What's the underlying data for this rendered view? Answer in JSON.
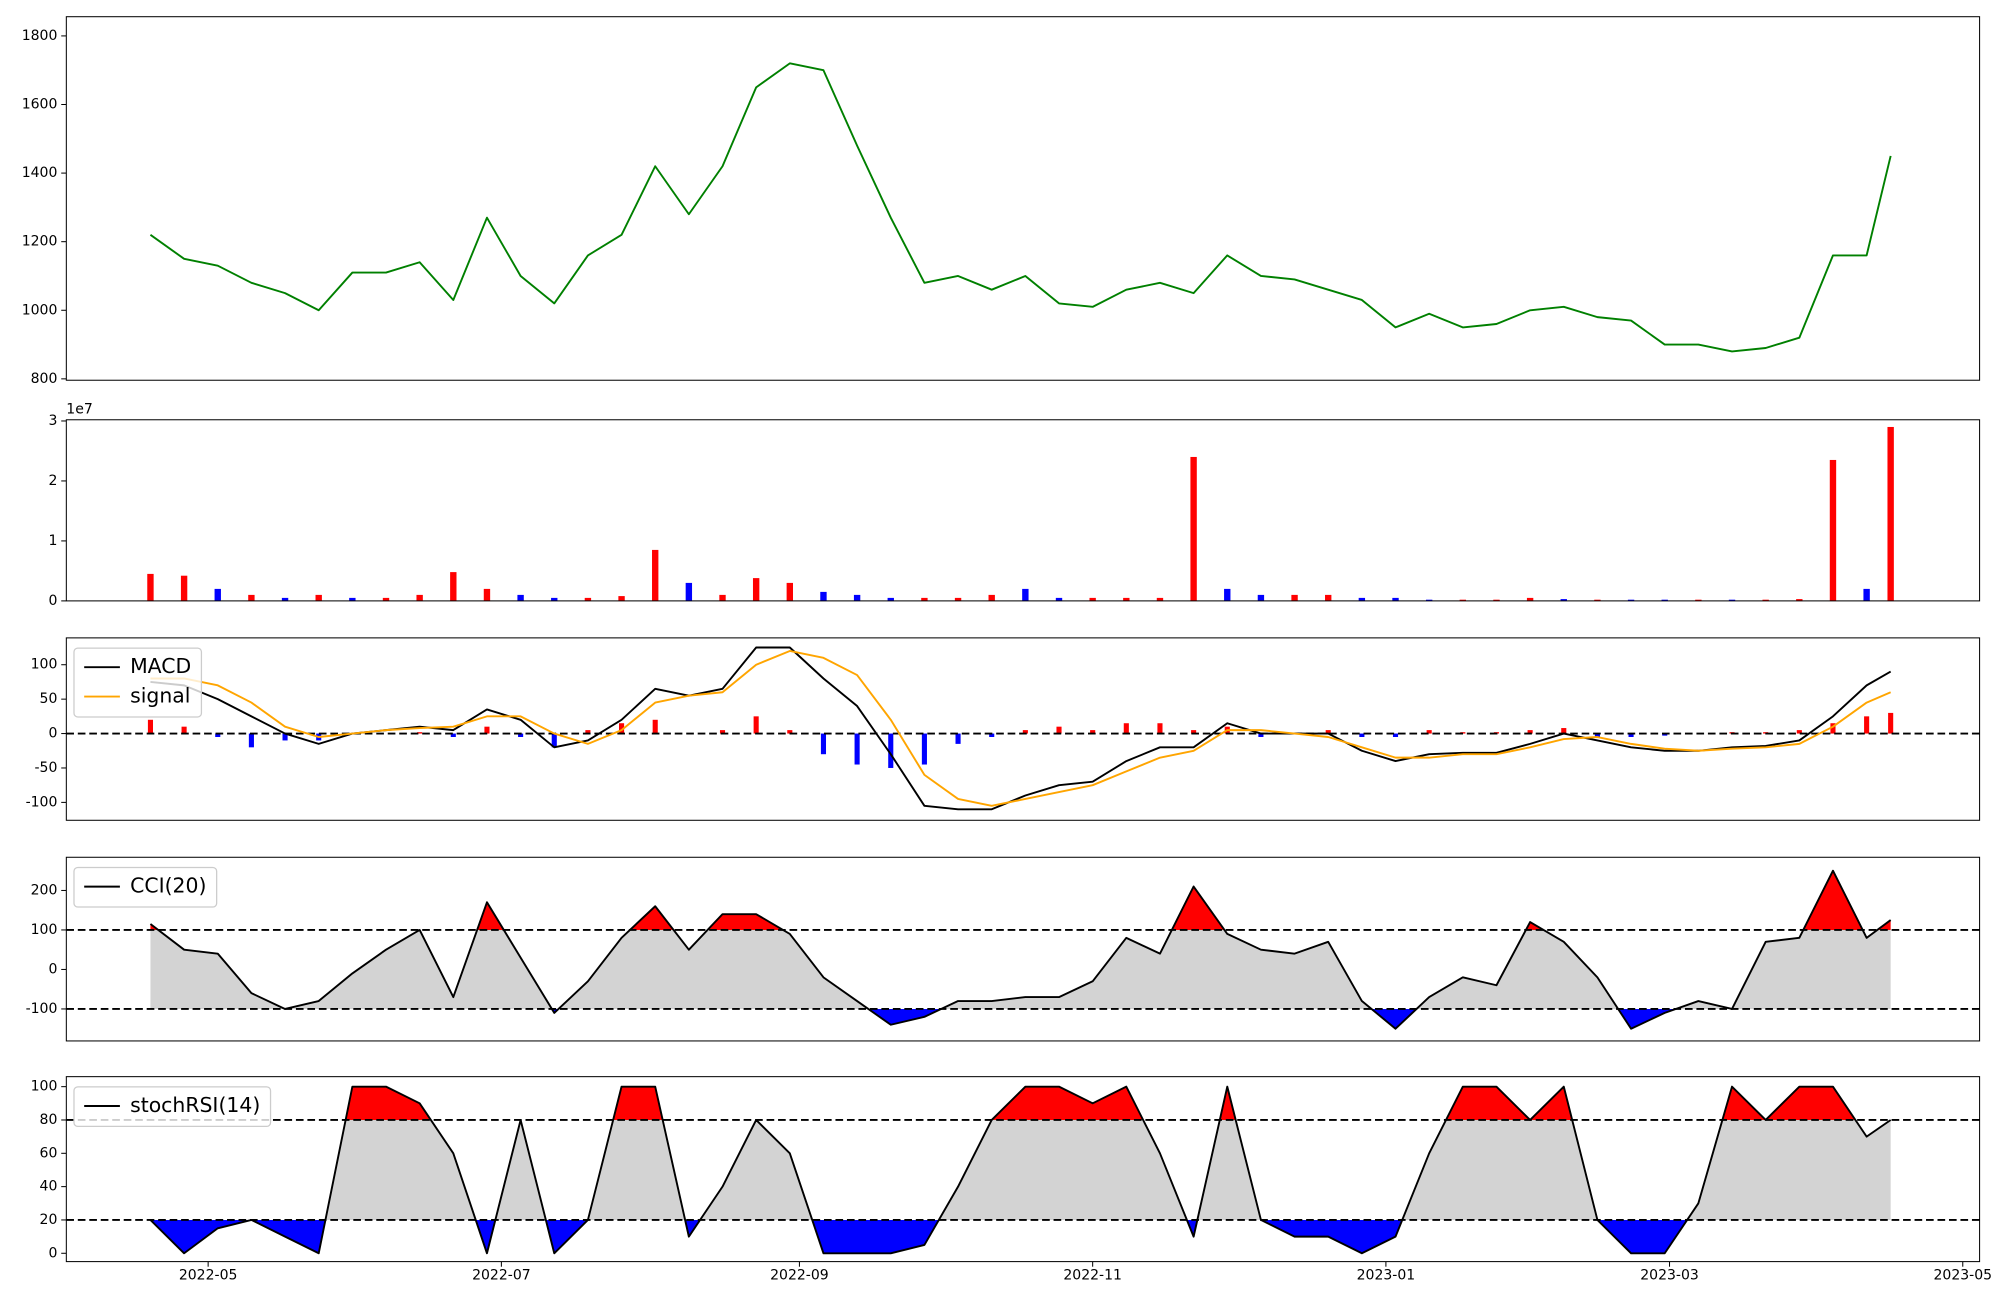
{
  "chart_data": [
    {
      "type": "line",
      "series": [
        {
          "color": "#008000",
          "values": [
            1220,
            1150,
            1130,
            1080,
            1050,
            1000,
            1110,
            1110,
            1140,
            1030,
            1270,
            1100,
            1020,
            1160,
            1220,
            1420,
            1280,
            1420,
            1650,
            1720,
            1700,
            1480,
            1270,
            1080,
            1100,
            1060,
            1100,
            1020,
            1010,
            1060,
            1080,
            1050,
            1160,
            1100,
            1090,
            1060,
            1030,
            950,
            990,
            950,
            960,
            1000,
            1010,
            980,
            970,
            900,
            900,
            880,
            890,
            920,
            1160,
            1160,
            1450
          ]
        }
      ],
      "ylim": [
        796,
        1856
      ],
      "yticks": [
        800,
        1000,
        1200,
        1400,
        1600,
        1800
      ]
    },
    {
      "type": "bar",
      "offset_label": "1e7",
      "values": [
        0.45,
        0.42,
        0.2,
        0.1,
        0.05,
        0.1,
        0.05,
        0.05,
        0.1,
        0.48,
        0.2,
        0.1,
        0.05,
        0.05,
        0.08,
        0.85,
        0.3,
        0.1,
        0.38,
        0.3,
        0.15,
        0.1,
        0.05,
        0.05,
        0.05,
        0.1,
        0.2,
        0.05,
        0.05,
        0.05,
        0.05,
        2.4,
        0.2,
        0.1,
        0.1,
        0.1,
        0.05,
        0.05,
        0.02,
        0.02,
        0.02,
        0.05,
        0.03,
        0.02,
        0.02,
        0.02,
        0.02,
        0.02,
        0.02,
        0.03,
        2.35,
        0.2,
        2.9
      ],
      "colors": [
        "red",
        "red",
        "blue",
        "red",
        "blue",
        "red",
        "blue",
        "red",
        "red",
        "red",
        "red",
        "blue",
        "blue",
        "red",
        "red",
        "red",
        "blue",
        "red",
        "red",
        "red",
        "blue",
        "blue",
        "blue",
        "red",
        "red",
        "red",
        "blue",
        "blue",
        "red",
        "red",
        "red",
        "red",
        "blue",
        "blue",
        "red",
        "red",
        "blue",
        "blue",
        "blue",
        "red",
        "red",
        "red",
        "blue",
        "red",
        "blue",
        "blue",
        "red",
        "blue",
        "red",
        "red",
        "red",
        "blue",
        "red"
      ],
      "ylim": [
        0,
        3.02
      ],
      "yticks": [
        0,
        1,
        2,
        3
      ]
    },
    {
      "type": "line",
      "legend": "upper left",
      "hline": 0,
      "series": [
        {
          "name": "MACD",
          "color": "black",
          "values": [
            75,
            70,
            50,
            25,
            0,
            -15,
            0,
            5,
            10,
            5,
            35,
            20,
            -20,
            -10,
            20,
            65,
            55,
            65,
            125,
            125,
            80,
            40,
            -30,
            -105,
            -110,
            -110,
            -90,
            -75,
            -70,
            -40,
            -20,
            -20,
            15,
            0,
            0,
            0,
            -25,
            -40,
            -30,
            -28,
            -28,
            -15,
            0,
            -10,
            -20,
            -25,
            -25,
            -20,
            -18,
            -10,
            25,
            70,
            90
          ]
        },
        {
          "name": "signal",
          "color": "orange",
          "values": [
            80,
            80,
            70,
            45,
            10,
            -5,
            0,
            5,
            8,
            10,
            25,
            25,
            0,
            -15,
            5,
            45,
            55,
            60,
            100,
            120,
            110,
            85,
            20,
            -60,
            -95,
            -105,
            -95,
            -85,
            -75,
            -55,
            -35,
            -25,
            5,
            5,
            0,
            -5,
            -20,
            -35,
            -35,
            -30,
            -30,
            -20,
            -8,
            -5,
            -15,
            -22,
            -25,
            -22,
            -20,
            -15,
            10,
            45,
            60
          ]
        }
      ],
      "histogram": {
        "pos_color": "red",
        "neg_color": "blue",
        "values": [
          20,
          10,
          -5,
          -20,
          -10,
          -10,
          0,
          0,
          2,
          -5,
          10,
          -5,
          -20,
          5,
          15,
          20,
          0,
          5,
          25,
          5,
          -30,
          -45,
          -50,
          -45,
          -15,
          -5,
          5,
          10,
          5,
          15,
          15,
          5,
          10,
          -5,
          0,
          5,
          -5,
          -5,
          5,
          2,
          2,
          5,
          8,
          -5,
          -5,
          -3,
          0,
          2,
          2,
          5,
          15,
          25,
          30
        ]
      },
      "ylim": [
        -126,
        139
      ],
      "yticks": [
        -100,
        -50,
        0,
        50,
        100
      ]
    },
    {
      "type": "band",
      "legend": "upper left",
      "upper": 100,
      "lower": -100,
      "fill": "lightgray",
      "upper_color": "red",
      "lower_color": "blue",
      "series": [
        {
          "name": "CCI(20)",
          "color": "black",
          "values": [
            115,
            50,
            40,
            -60,
            -100,
            -80,
            -10,
            50,
            100,
            -70,
            170,
            30,
            -110,
            -30,
            80,
            160,
            50,
            140,
            140,
            90,
            -20,
            -80,
            -140,
            -120,
            -80,
            -80,
            -70,
            -70,
            -30,
            80,
            40,
            210,
            90,
            50,
            40,
            70,
            -80,
            -150,
            -70,
            -20,
            -40,
            120,
            70,
            -20,
            -150,
            -110,
            -80,
            -100,
            70,
            80,
            250,
            80,
            125
          ]
        }
      ],
      "ylim": [
        -181,
        284
      ],
      "yticks": [
        -100,
        0,
        100,
        200
      ]
    },
    {
      "type": "band",
      "legend": "upper left",
      "upper": 80,
      "lower": 20,
      "fill": "lightgray",
      "upper_color": "red",
      "lower_color": "blue",
      "series": [
        {
          "name": "stochRSI(14)",
          "color": "black",
          "values": [
            20,
            0,
            15,
            20,
            10,
            0,
            100,
            100,
            90,
            60,
            0,
            80,
            0,
            20,
            100,
            100,
            10,
            40,
            80,
            60,
            0,
            0,
            0,
            5,
            40,
            80,
            100,
            100,
            90,
            100,
            60,
            10,
            100,
            20,
            10,
            10,
            0,
            10,
            60,
            100,
            100,
            80,
            100,
            20,
            0,
            0,
            30,
            100,
            80,
            100,
            100,
            70,
            80
          ]
        }
      ],
      "ylim": [
        -5,
        106
      ],
      "yticks": [
        0,
        20,
        40,
        60,
        80,
        100
      ],
      "x": [
        -12,
        -5,
        2,
        9,
        16,
        23,
        30,
        37,
        44,
        51,
        58,
        65,
        72,
        79,
        86,
        93,
        100,
        107,
        114,
        121,
        128,
        135,
        142,
        149,
        156,
        163,
        170,
        177,
        184,
        191,
        198,
        205,
        212,
        219,
        226,
        233,
        240,
        247,
        254,
        261,
        268,
        275,
        282,
        289,
        296,
        303,
        310,
        317,
        324,
        331,
        338,
        345,
        350
      ],
      "xlim": [
        -29.5,
        368.5
      ],
      "xticks": [
        {
          "value": 0,
          "label": "2022-05"
        },
        {
          "value": 61,
          "label": "2022-07"
        },
        {
          "value": 123,
          "label": "2022-09"
        },
        {
          "value": 184,
          "label": "2022-11"
        },
        {
          "value": 245,
          "label": "2023-01"
        },
        {
          "value": 304,
          "label": "2023-03"
        },
        {
          "value": 365,
          "label": "2023-05"
        }
      ]
    }
  ]
}
